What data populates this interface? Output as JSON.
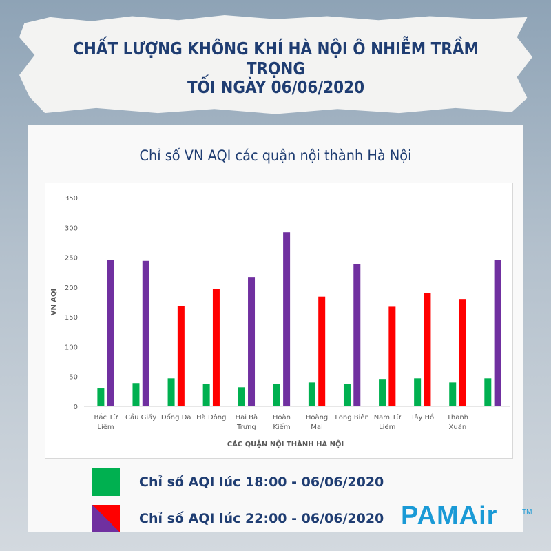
{
  "header": {
    "line1": "CHẤT LƯỢNG KHÔNG KHÍ HÀ NỘI Ô NHIỄM TRẦM TRỌNG",
    "line2": "TỐI NGÀY 06/06/2020"
  },
  "colors": {
    "green": "#00b050",
    "red": "#ff0000",
    "purple": "#7030a0",
    "navy": "#1f3d72",
    "brand": "#1a9ad6"
  },
  "chart_data": {
    "type": "bar",
    "title": "Chỉ số VN AQI các quận nội thành Hà Nội",
    "xlabel": "CÁC QUẬN NỘI THÀNH HÀ NỘI",
    "ylabel": "VN AQI",
    "ylim": [
      0,
      350
    ],
    "yticks": [
      0,
      50,
      100,
      150,
      200,
      250,
      300,
      350
    ],
    "grid": false,
    "legend_position": "bottom",
    "categories": [
      [
        "Bắc Từ",
        "Liêm"
      ],
      [
        "Cầu Giấy"
      ],
      [
        "Đống Đa"
      ],
      [
        "Hà Đông"
      ],
      [
        "Hai Bà",
        "Trưng"
      ],
      [
        "Hoàn",
        "Kiếm"
      ],
      [
        "Hoàng",
        "Mai"
      ],
      [
        "Long Biên"
      ],
      [
        "Nam Từ",
        "Liêm"
      ],
      [
        "Tây Hồ"
      ],
      [
        "Thanh",
        "Xuân"
      ],
      []
    ],
    "series": [
      {
        "name": "Chỉ số AQI lúc 18:00 - 06/06/2020",
        "values": [
          30,
          39,
          47,
          38,
          32,
          38,
          40,
          38,
          46,
          47,
          40,
          47
        ]
      },
      {
        "name": "Chỉ số AQI lúc 22:00 - 06/06/2020",
        "values": [
          245,
          244,
          168,
          197,
          217,
          292,
          184,
          238,
          167,
          190,
          180,
          246
        ],
        "colors": [
          "purple",
          "purple",
          "red",
          "red",
          "purple",
          "purple",
          "red",
          "purple",
          "red",
          "red",
          "red",
          "purple"
        ]
      }
    ]
  },
  "logo": {
    "pam": "PAM",
    "air": "Air",
    "tm": "TM"
  }
}
